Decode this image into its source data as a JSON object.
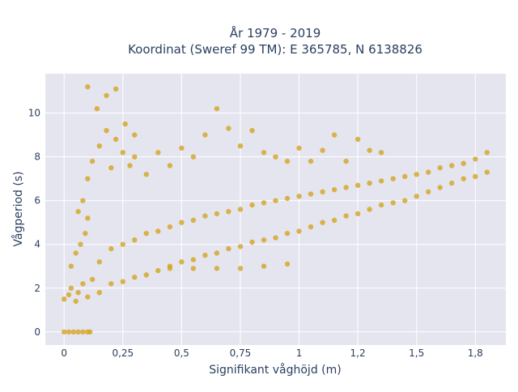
{
  "chart_data": {
    "type": "scatter",
    "title": "År 1979 - 2019",
    "subtitle": "Koordinat (Sweref 99 TM): E 365785, N 6138826",
    "xlabel": "Signifikant våghöjd (m)",
    "ylabel": "Vågperiod (s)",
    "xlim": [
      -0.08,
      1.88
    ],
    "ylim": [
      -0.6,
      11.8
    ],
    "xticks": [
      {
        "value": 0,
        "label": "0"
      },
      {
        "value": 0.25,
        "label": "0,25"
      },
      {
        "value": 0.5,
        "label": "0,5"
      },
      {
        "value": 0.75,
        "label": "0,75"
      },
      {
        "value": 1.0,
        "label": "1"
      },
      {
        "value": 1.25,
        "label": "1,2"
      },
      {
        "value": 1.5,
        "label": "1,5"
      },
      {
        "value": 1.75,
        "label": "1,8"
      }
    ],
    "yticks": [
      {
        "value": 0,
        "label": "0"
      },
      {
        "value": 2,
        "label": "2"
      },
      {
        "value": 4,
        "label": "4"
      },
      {
        "value": 6,
        "label": "6"
      },
      {
        "value": 8,
        "label": "8"
      },
      {
        "value": 10,
        "label": "10"
      }
    ],
    "grid": true,
    "marker_color": "#d4a420",
    "plot_background": "#e5e5f0",
    "series": [
      {
        "values": [
          [
            0.0,
            0.0
          ],
          [
            0.02,
            0.0
          ],
          [
            0.04,
            0.0
          ],
          [
            0.06,
            0.0
          ],
          [
            0.08,
            0.0
          ],
          [
            0.1,
            0.0
          ],
          [
            0.11,
            0.0
          ],
          [
            0.0,
            1.5
          ],
          [
            0.02,
            1.7
          ],
          [
            0.03,
            2.0
          ],
          [
            0.05,
            1.4
          ],
          [
            0.06,
            1.8
          ],
          [
            0.08,
            2.2
          ],
          [
            0.1,
            1.6
          ],
          [
            0.12,
            2.4
          ],
          [
            0.03,
            3.0
          ],
          [
            0.05,
            3.6
          ],
          [
            0.07,
            4.0
          ],
          [
            0.09,
            4.5
          ],
          [
            0.06,
            5.5
          ],
          [
            0.08,
            6.0
          ],
          [
            0.1,
            5.2
          ],
          [
            0.15,
            1.8
          ],
          [
            0.2,
            2.2
          ],
          [
            0.25,
            2.3
          ],
          [
            0.3,
            2.5
          ],
          [
            0.35,
            2.6
          ],
          [
            0.4,
            2.8
          ],
          [
            0.45,
            3.0
          ],
          [
            0.5,
            3.2
          ],
          [
            0.55,
            3.3
          ],
          [
            0.6,
            3.5
          ],
          [
            0.15,
            3.2
          ],
          [
            0.2,
            3.8
          ],
          [
            0.25,
            4.0
          ],
          [
            0.3,
            4.2
          ],
          [
            0.35,
            4.5
          ],
          [
            0.4,
            4.6
          ],
          [
            0.45,
            4.8
          ],
          [
            0.5,
            5.0
          ],
          [
            0.55,
            5.1
          ],
          [
            0.6,
            5.3
          ],
          [
            0.65,
            3.6
          ],
          [
            0.7,
            3.8
          ],
          [
            0.75,
            3.9
          ],
          [
            0.8,
            4.1
          ],
          [
            0.85,
            4.2
          ],
          [
            0.9,
            4.3
          ],
          [
            0.95,
            4.5
          ],
          [
            1.0,
            4.6
          ],
          [
            1.05,
            4.8
          ],
          [
            1.1,
            5.0
          ],
          [
            0.65,
            5.4
          ],
          [
            0.7,
            5.5
          ],
          [
            0.75,
            5.6
          ],
          [
            0.8,
            5.8
          ],
          [
            0.85,
            5.9
          ],
          [
            0.9,
            6.0
          ],
          [
            0.95,
            6.1
          ],
          [
            1.0,
            6.2
          ],
          [
            1.05,
            6.3
          ],
          [
            1.1,
            6.4
          ],
          [
            1.15,
            5.1
          ],
          [
            1.2,
            5.3
          ],
          [
            1.25,
            5.4
          ],
          [
            1.3,
            5.6
          ],
          [
            1.35,
            5.8
          ],
          [
            1.4,
            5.9
          ],
          [
            1.45,
            6.0
          ],
          [
            1.5,
            6.2
          ],
          [
            1.55,
            6.4
          ],
          [
            1.6,
            6.6
          ],
          [
            1.65,
            6.8
          ],
          [
            1.7,
            7.0
          ],
          [
            1.75,
            7.1
          ],
          [
            1.8,
            7.3
          ],
          [
            1.15,
            6.5
          ],
          [
            1.2,
            6.6
          ],
          [
            1.25,
            6.7
          ],
          [
            1.3,
            6.8
          ],
          [
            1.35,
            6.9
          ],
          [
            1.4,
            7.0
          ],
          [
            1.45,
            7.1
          ],
          [
            1.5,
            7.2
          ],
          [
            1.55,
            7.3
          ],
          [
            1.6,
            7.5
          ],
          [
            1.65,
            7.6
          ],
          [
            1.7,
            7.7
          ],
          [
            1.75,
            7.9
          ],
          [
            1.8,
            8.2
          ],
          [
            0.45,
            2.9
          ],
          [
            0.55,
            2.9
          ],
          [
            0.65,
            2.9
          ],
          [
            0.75,
            2.9
          ],
          [
            0.85,
            3.0
          ],
          [
            0.95,
            3.1
          ],
          [
            0.1,
            7.0
          ],
          [
            0.12,
            7.8
          ],
          [
            0.15,
            8.5
          ],
          [
            0.18,
            9.2
          ],
          [
            0.2,
            7.5
          ],
          [
            0.22,
            8.8
          ],
          [
            0.25,
            8.2
          ],
          [
            0.28,
            7.6
          ],
          [
            0.3,
            8.0
          ],
          [
            0.35,
            7.2
          ],
          [
            0.14,
            10.2
          ],
          [
            0.18,
            10.8
          ],
          [
            0.22,
            11.1
          ],
          [
            0.1,
            11.2
          ],
          [
            0.26,
            9.5
          ],
          [
            0.3,
            9.0
          ],
          [
            0.4,
            8.2
          ],
          [
            0.45,
            7.6
          ],
          [
            0.5,
            8.4
          ],
          [
            0.55,
            8.0
          ],
          [
            0.6,
            9.0
          ],
          [
            0.65,
            10.2
          ],
          [
            0.7,
            9.3
          ],
          [
            0.75,
            8.5
          ],
          [
            0.8,
            9.2
          ],
          [
            0.85,
            8.2
          ],
          [
            0.9,
            8.0
          ],
          [
            0.95,
            7.8
          ],
          [
            1.0,
            8.4
          ],
          [
            1.05,
            7.8
          ],
          [
            1.1,
            8.3
          ],
          [
            1.15,
            9.0
          ],
          [
            1.2,
            7.8
          ],
          [
            1.25,
            8.8
          ],
          [
            1.3,
            8.3
          ],
          [
            1.35,
            8.2
          ]
        ]
      }
    ]
  }
}
